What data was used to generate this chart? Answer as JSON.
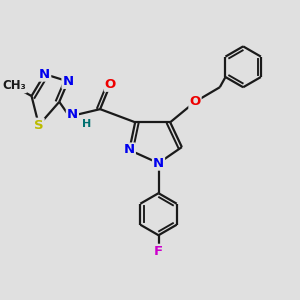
{
  "bg_color": "#e0e0e0",
  "bond_color": "#1a1a1a",
  "bond_width": 1.6,
  "dbo": 0.055,
  "atom_colors": {
    "N": "#0000ee",
    "O": "#ee0000",
    "S": "#bbbb00",
    "F": "#cc00cc",
    "H": "#007070",
    "C": "#1a1a1a"
  },
  "fs": 9.5
}
